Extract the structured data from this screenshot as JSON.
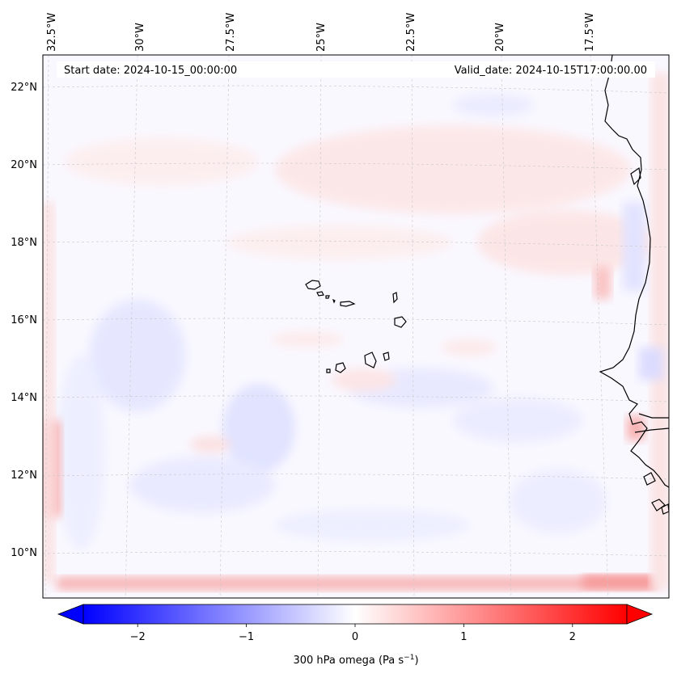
{
  "header": {
    "start_date": "Start date: 2024-10-15_00:00:00",
    "valid_date": "Valid_date: 2024-10-15T17:00:00.00"
  },
  "axes": {
    "lon_labels": [
      "32.5°W",
      "30°W",
      "27.5°W",
      "25°W",
      "22.5°W",
      "20°W",
      "17.5°W"
    ],
    "lat_labels": [
      "22°N",
      "20°N",
      "18°N",
      "16°N",
      "14°N",
      "12°N",
      "10°N"
    ]
  },
  "colorbar": {
    "label_main": "300 hPa omega (Pa s",
    "label_sup": "−1",
    "label_close": ")",
    "ticks": [
      {
        "value": -2,
        "text": "−2"
      },
      {
        "value": -1,
        "text": "−1"
      },
      {
        "value": 0,
        "text": "0"
      },
      {
        "value": 1,
        "text": "1"
      },
      {
        "value": 2,
        "text": "2"
      }
    ],
    "min": -2.5,
    "max": 2.5,
    "low_color": "#0000ff",
    "mid_color": "#ffffff",
    "high_color": "#ff0000"
  }
}
